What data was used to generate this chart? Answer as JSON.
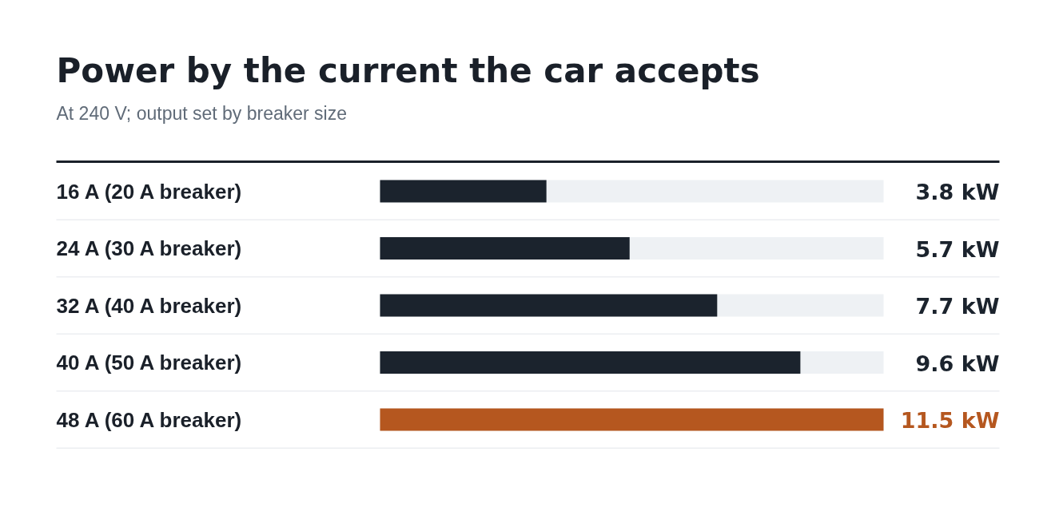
{
  "chart_data": {
    "type": "bar",
    "orientation": "horizontal",
    "title": "Power by the current the car accepts",
    "subtitle": "At 240 V; output set by breaker size",
    "categories": [
      "16 A (20 A breaker)",
      "24 A (30 A breaker)",
      "32 A (40 A breaker)",
      "40 A (50 A breaker)",
      "48 A (60 A breaker)"
    ],
    "values": [
      3.8,
      5.7,
      7.7,
      9.6,
      11.5
    ],
    "colors": [
      "#1b232d",
      "#1b232d",
      "#1b232d",
      "#1b232d",
      "#b5571f"
    ],
    "value_labels": [
      "3.8 kW",
      "5.7 kW",
      "7.7 kW",
      "9.6 kW",
      "11.5 kW"
    ],
    "xlim": [
      0,
      11.5
    ],
    "tick_labels": "y"
  }
}
